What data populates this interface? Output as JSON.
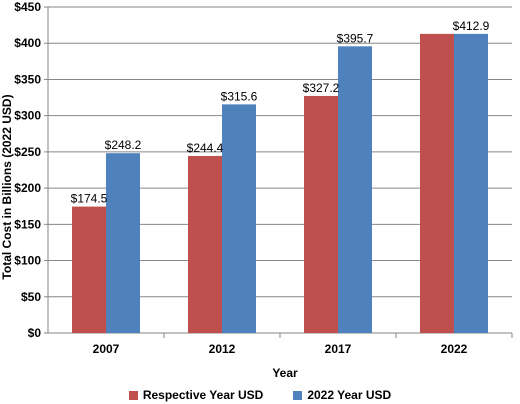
{
  "chart_data": {
    "type": "bar",
    "title": "",
    "xlabel": "Year",
    "ylabel": "Total Cost in Billions (2022 USD)",
    "categories": [
      "2007",
      "2012",
      "2017",
      "2022"
    ],
    "series": [
      {
        "name": "Respective Year USD",
        "color": "#c0504d",
        "values": [
          174.5,
          244.4,
          327.2,
          412.9
        ],
        "labels": [
          "$174.5",
          "$244.4",
          "$327.2",
          ""
        ]
      },
      {
        "name": "2022 Year USD",
        "color": "#4f81bd",
        "values": [
          248.2,
          315.6,
          395.7,
          412.9
        ],
        "labels": [
          "$248.2",
          "$315.6",
          "$395.7",
          "$412.9"
        ]
      }
    ],
    "ylim": [
      0,
      450
    ],
    "yticks": [
      0,
      50,
      100,
      150,
      200,
      250,
      300,
      350,
      400,
      450
    ],
    "ytick_labels": [
      "$0",
      "$50",
      "$100",
      "$150",
      "$200",
      "$250",
      "$300",
      "$350",
      "$400",
      "$450"
    ],
    "grid": true,
    "legend_position": "bottom"
  }
}
